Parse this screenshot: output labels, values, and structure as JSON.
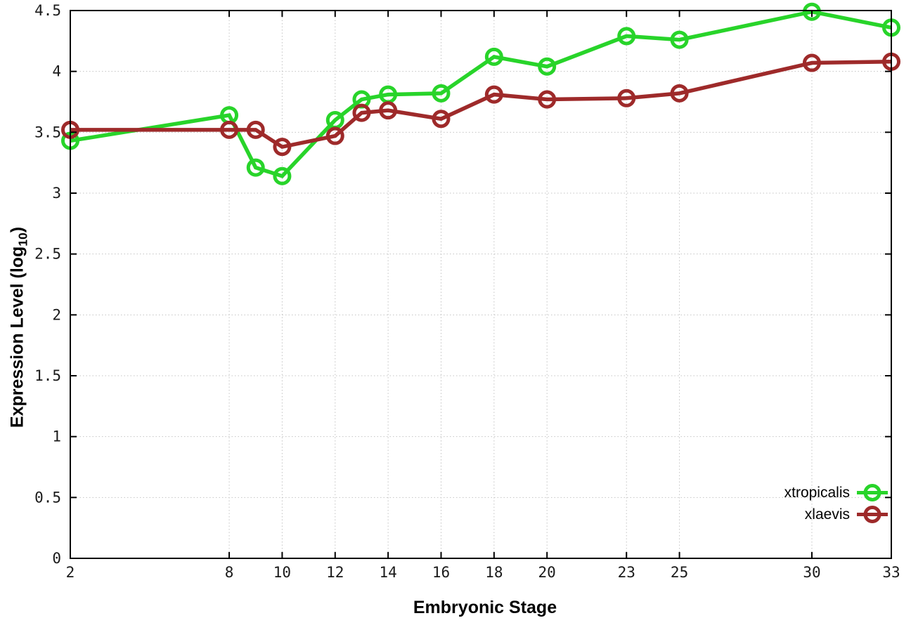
{
  "chart_data": {
    "type": "line",
    "title": "",
    "xlabel": "Embryonic Stage",
    "ylabel": "Expression Level (log10)",
    "ylabel_parts": {
      "main": "Expression Level (log",
      "sub": "10",
      "end": ")"
    },
    "xlim": [
      2,
      33
    ],
    "ylim": [
      0,
      4.5
    ],
    "x_ticks": [
      2,
      8,
      10,
      12,
      14,
      16,
      18,
      20,
      23,
      25,
      30,
      33
    ],
    "y_ticks": [
      0,
      0.5,
      1,
      1.5,
      2,
      2.5,
      3,
      3.5,
      4,
      4.5
    ],
    "grid": true,
    "grid_color": "#c4c4c4",
    "border_color": "#000000",
    "tick_label_color": "#1a1a1a",
    "legend_position": "inside-bottom-right",
    "marker": "open-circle",
    "series": [
      {
        "name": "xtropicalis",
        "color": "#28d42a",
        "x": [
          2,
          8,
          9,
          10,
          12,
          13,
          14,
          16,
          18,
          20,
          23,
          25,
          30,
          33
        ],
        "y": [
          3.43,
          3.64,
          3.21,
          3.14,
          3.6,
          3.77,
          3.81,
          3.82,
          4.12,
          4.04,
          4.29,
          4.26,
          4.49,
          4.36
        ]
      },
      {
        "name": "xlaevis",
        "color": "#9e2a2a",
        "x": [
          2,
          8,
          9,
          10,
          12,
          13,
          14,
          16,
          18,
          20,
          23,
          25,
          30,
          33
        ],
        "y": [
          3.52,
          3.52,
          3.52,
          3.38,
          3.47,
          3.66,
          3.68,
          3.61,
          3.81,
          3.77,
          3.78,
          3.82,
          4.07,
          4.08
        ]
      }
    ]
  }
}
